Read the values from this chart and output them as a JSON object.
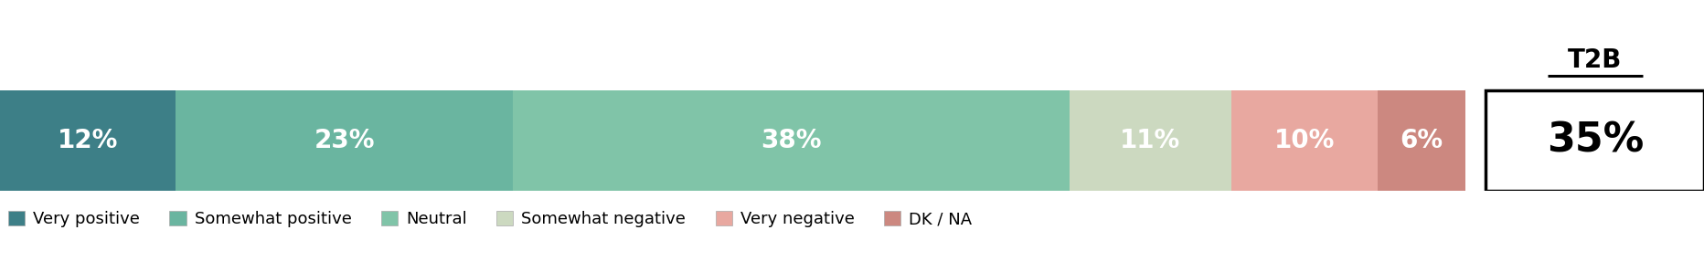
{
  "segments": [
    {
      "label": "Very positive",
      "value": 12,
      "color": "#3d7f87"
    },
    {
      "label": "Somewhat positive",
      "value": 23,
      "color": "#6ab5a0"
    },
    {
      "label": "Neutral",
      "value": 38,
      "color": "#80c4a8"
    },
    {
      "label": "Somewhat negative",
      "value": 11,
      "color": "#ccd9c0"
    },
    {
      "label": "Very negative",
      "value": 10,
      "color": "#e8a8a0"
    },
    {
      "label": "DK / NA",
      "value": 6,
      "color": "#cc8880"
    }
  ],
  "t2b_value": "35%",
  "t2b_label": "T2B",
  "bar_text_color": "#ffffff",
  "bar_fontsize": 20,
  "t2b_fontsize": 32,
  "t2b_label_fontsize": 20,
  "legend_fontsize": 13,
  "background_color": "#ffffff"
}
